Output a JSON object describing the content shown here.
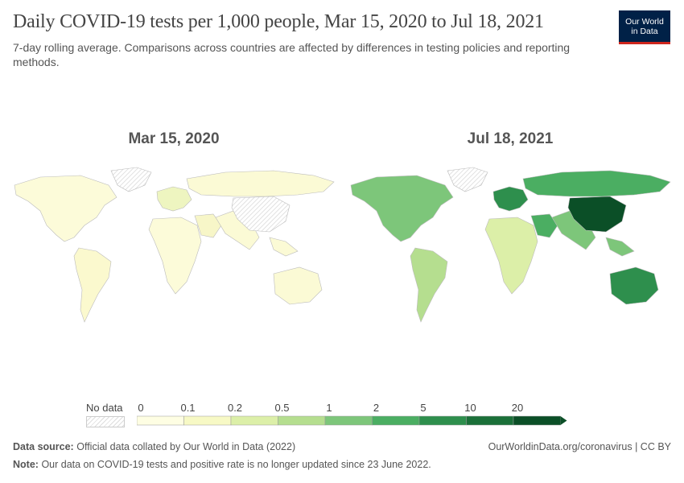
{
  "header": {
    "title": "Daily COVID-19 tests per 1,000 people, Mar 15, 2020 to Jul 18, 2021",
    "subtitle": "7-day rolling average. Comparisons across countries are affected by differences in testing policies and reporting methods.",
    "logo_line1": "Our World",
    "logo_line2": "in Data"
  },
  "maps": [
    {
      "label": "Mar 15, 2020",
      "ocean": "#ffffff"
    },
    {
      "label": "Jul 18, 2021",
      "ocean": "#ffffff"
    }
  ],
  "legend": {
    "no_data_label": "No data",
    "ticks": [
      "0",
      "0.1",
      "0.2",
      "0.5",
      "1",
      "2",
      "5",
      "10",
      "20"
    ],
    "colors": [
      "#fefee3",
      "#f7f9c5",
      "#dcefa8",
      "#b5de8f",
      "#7dc67a",
      "#4bae62",
      "#2e8f4d",
      "#1b7039",
      "#0b4f27"
    ]
  },
  "regions": {
    "left": {
      "north_america": "#fcfbd9",
      "south_america": "#fbf9ce",
      "europe": "#eef5c0",
      "africa": "#fcfbd9",
      "russia": "#fbfad5",
      "middle_east": "#f7f6c8",
      "asia": "#fbfad5",
      "australia": "#fbfad5",
      "greenland": "nodata",
      "china": "nodata"
    },
    "right": {
      "north_america": "#7dc67a",
      "south_america": "#b5de8f",
      "europe": "#2e8f4d",
      "africa": "#dcefa8",
      "russia": "#4bae62",
      "middle_east": "#4bae62",
      "asia": "#7dc67a",
      "australia": "#2e8f4d",
      "greenland": "nodata",
      "china": "#0b4f27"
    }
  },
  "footer": {
    "source_label": "Data source:",
    "source_text": "Official data collated by Our World in Data (2022)",
    "url": "OurWorldinData.org/coronavirus | CC BY",
    "note_label": "Note:",
    "note_text": "Our data on COVID-19 tests and positive rate is no longer updated since 23 June 2022."
  }
}
